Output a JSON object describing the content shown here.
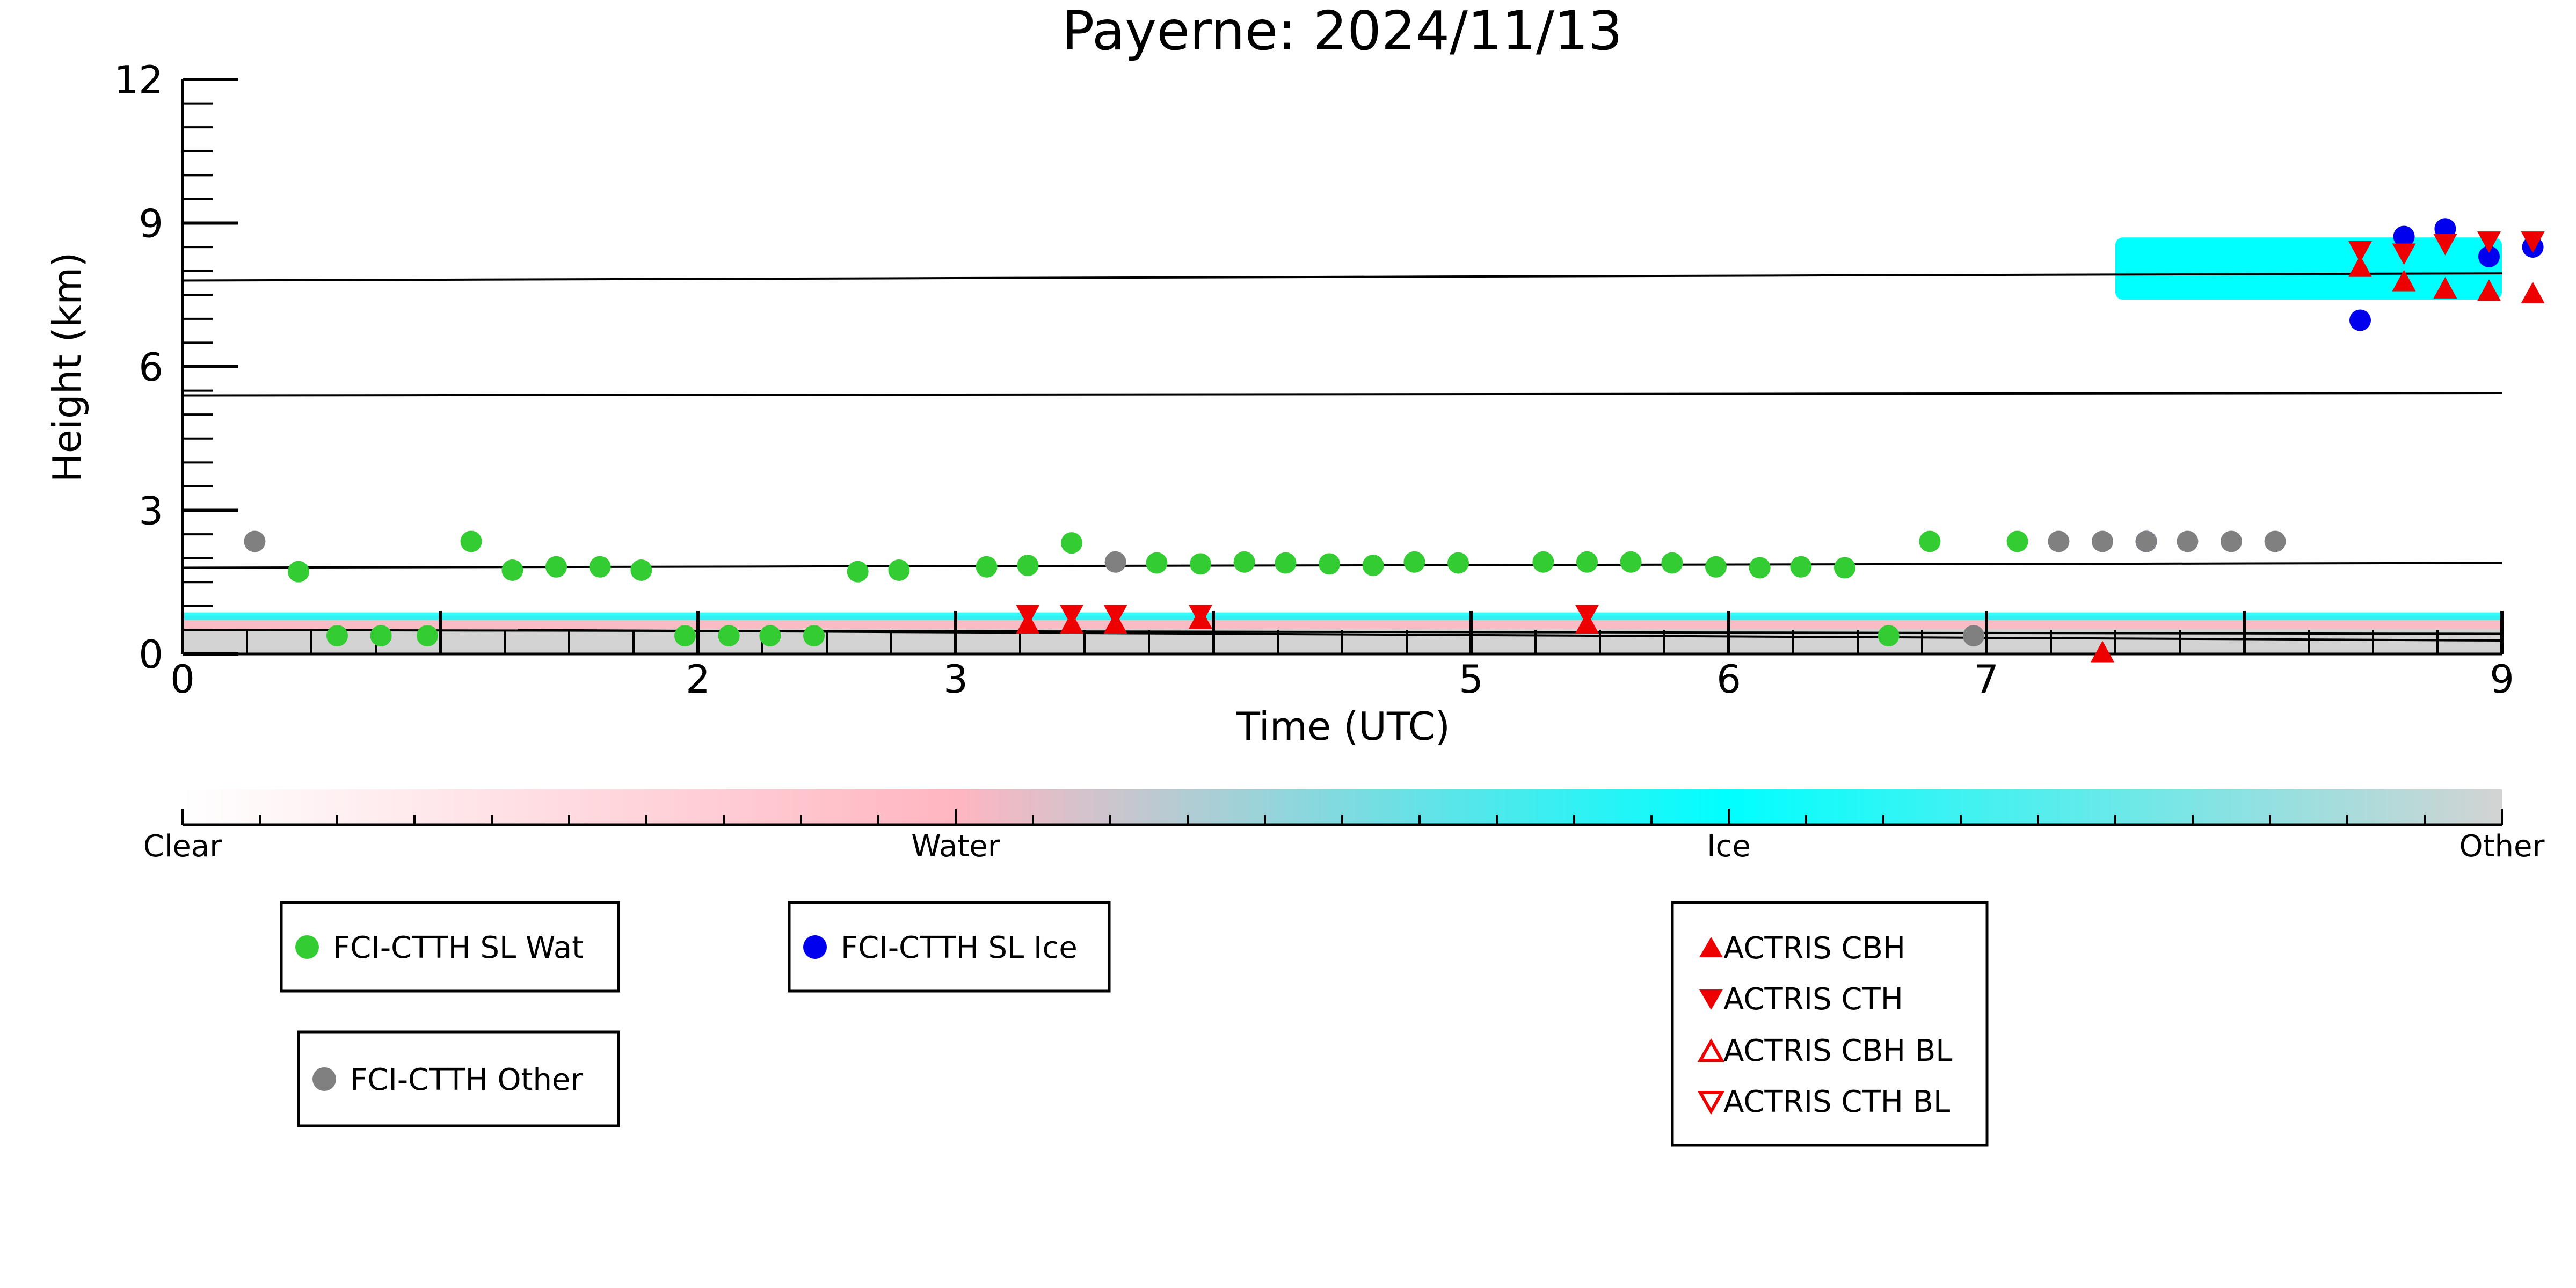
{
  "chart_data": {
    "type": "scatter",
    "title": "Payerne: 2024/11/13",
    "xlabel": "Time (UTC)",
    "ylabel": "Height (km)",
    "xlim": [
      0,
      9
    ],
    "ylim": [
      0,
      12
    ],
    "x_ticks": [
      0,
      2,
      3,
      5,
      6,
      7,
      9
    ],
    "x_tick_labels": [
      "0",
      "2",
      "3",
      "5",
      "6",
      "7",
      "9"
    ],
    "y_ticks": [
      0,
      3,
      6,
      9,
      12
    ],
    "y_tick_labels": [
      "0",
      "3",
      "6",
      "9",
      "12"
    ],
    "grid": false,
    "background_mask": {
      "description_classes": [
        "Clear",
        "Water",
        "Ice",
        "Other"
      ],
      "low_layer": {
        "x": [
          0,
          9
        ],
        "bottom": 0.0,
        "top": 0.8
      },
      "high_layer": {
        "x": [
          7.5,
          9
        ],
        "bottom": 7.4,
        "top": 8.7
      }
    },
    "reference_lines": [
      {
        "x": [
          0,
          9
        ],
        "y": [
          7.8,
          7.95
        ]
      },
      {
        "x": [
          0,
          9
        ],
        "y": [
          5.4,
          5.45
        ]
      },
      {
        "x": [
          0,
          9
        ],
        "y": [
          1.8,
          1.9
        ]
      },
      {
        "x": [
          0,
          9
        ],
        "y": [
          0.5,
          0.42
        ]
      },
      {
        "x": [
          1.3,
          9
        ],
        "y": [
          0.5,
          0.28
        ]
      }
    ],
    "series": [
      {
        "name": "FCI-CTTH SL Wat",
        "color": "#33cc33",
        "marker": "circle",
        "points": [
          [
            0.45,
            1.72
          ],
          [
            0.6,
            0.38
          ],
          [
            0.77,
            0.38
          ],
          [
            0.95,
            0.38
          ],
          [
            1.12,
            2.35
          ],
          [
            1.28,
            1.75
          ],
          [
            1.45,
            1.82
          ],
          [
            1.62,
            1.82
          ],
          [
            1.78,
            1.75
          ],
          [
            1.95,
            0.38
          ],
          [
            2.12,
            0.38
          ],
          [
            2.28,
            0.38
          ],
          [
            2.45,
            0.38
          ],
          [
            2.62,
            1.72
          ],
          [
            2.78,
            1.75
          ],
          [
            3.12,
            1.82
          ],
          [
            3.28,
            1.85
          ],
          [
            3.45,
            2.32
          ],
          [
            3.78,
            1.9
          ],
          [
            3.95,
            1.88
          ],
          [
            4.12,
            1.92
          ],
          [
            4.28,
            1.9
          ],
          [
            4.45,
            1.88
          ],
          [
            4.62,
            1.85
          ],
          [
            4.78,
            1.92
          ],
          [
            4.95,
            1.9
          ],
          [
            5.28,
            1.92
          ],
          [
            5.45,
            1.92
          ],
          [
            5.62,
            1.92
          ],
          [
            5.78,
            1.9
          ],
          [
            5.95,
            1.82
          ],
          [
            6.12,
            1.8
          ],
          [
            6.28,
            1.82
          ],
          [
            6.45,
            1.8
          ],
          [
            6.62,
            0.38
          ],
          [
            6.78,
            2.35
          ],
          [
            7.12,
            2.35
          ]
        ]
      },
      {
        "name": "FCI-CTTH SL Ice",
        "color": "#0000ee",
        "marker": "circle",
        "points": [
          [
            7.62,
            2.35
          ],
          [
            8.45,
            6.97
          ],
          [
            8.62,
            8.72
          ],
          [
            8.78,
            8.88
          ],
          [
            8.95,
            8.3
          ],
          [
            9.12,
            8.5
          ]
        ]
      },
      {
        "name": "FCI-CTTH Other",
        "color": "#808080",
        "marker": "circle",
        "points": [
          [
            0.28,
            2.35
          ],
          [
            3.62,
            1.92
          ],
          [
            6.95,
            0.38
          ],
          [
            7.28,
            2.35
          ],
          [
            7.45,
            2.35
          ],
          [
            7.62,
            2.35
          ],
          [
            7.78,
            2.35
          ],
          [
            7.95,
            2.35
          ],
          [
            8.12,
            2.35
          ]
        ]
      },
      {
        "name": "ACTRIS CBH",
        "color": "#ee0000",
        "marker": "triangle-up",
        "points": [
          [
            3.28,
            0.65
          ],
          [
            3.45,
            0.65
          ],
          [
            3.62,
            0.65
          ],
          [
            3.95,
            0.75
          ],
          [
            5.45,
            0.65
          ],
          [
            7.45,
            0.05
          ],
          [
            8.45,
            8.1
          ],
          [
            8.62,
            7.8
          ],
          [
            8.78,
            7.65
          ],
          [
            8.95,
            7.6
          ],
          [
            9.12,
            7.55
          ]
        ]
      },
      {
        "name": "ACTRIS CTH",
        "color": "#ee0000",
        "marker": "triangle-down",
        "points": [
          [
            3.28,
            0.8
          ],
          [
            3.45,
            0.8
          ],
          [
            3.62,
            0.8
          ],
          [
            3.95,
            0.8
          ],
          [
            5.45,
            0.8
          ],
          [
            8.45,
            8.4
          ],
          [
            8.62,
            8.35
          ],
          [
            8.78,
            8.55
          ],
          [
            8.95,
            8.6
          ],
          [
            9.12,
            8.6
          ]
        ]
      },
      {
        "name": "ACTRIS CBH BL",
        "color": "#ee0000",
        "marker": "triangle-up-open",
        "points": []
      },
      {
        "name": "ACTRIS CTH BL",
        "color": "#ee0000",
        "marker": "triangle-down-open",
        "points": []
      }
    ],
    "colorbar": {
      "labels": [
        "Clear",
        "Water",
        "Ice",
        "Other"
      ],
      "stops": [
        "#ffffff",
        "#ffb6c1",
        "#00ffff",
        "#d3d3d3"
      ]
    },
    "legends": [
      {
        "entries": [
          "FCI-CTTH SL Wat"
        ]
      },
      {
        "entries": [
          "FCI-CTTH SL Ice"
        ]
      },
      {
        "entries": [
          "FCI-CTTH Other"
        ]
      },
      {
        "entries": [
          "ACTRIS CBH",
          "ACTRIS CTH",
          "ACTRIS CBH BL",
          "ACTRIS CTH BL"
        ]
      }
    ]
  }
}
